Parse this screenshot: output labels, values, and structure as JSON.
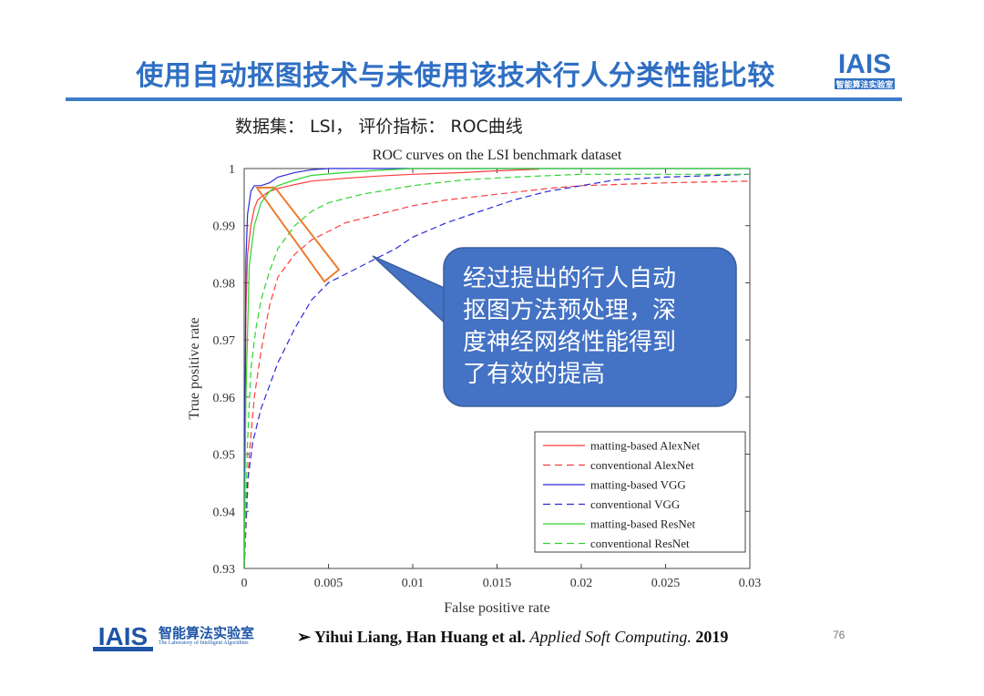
{
  "slide": {
    "title": "使用自动抠图技术与未使用该技术行人分类性能比较",
    "subtitle": "数据集： LSI， 评价指标： ROC曲线",
    "callout_text": "经过提出的行人自动抠图方法预处理，深度神经网络性能得到了有效的提高",
    "callout_lines": [
      "经过提出的行人自动",
      "抠图方法预处理，深",
      "度神经网络性能得到",
      "了有效的提高"
    ],
    "citation_bullet": "➢",
    "citation_authors": "Yihui Liang, Han Huang et al.",
    "citation_journal": "Applied Soft Computing.",
    "citation_year": "2019",
    "page_number": "76",
    "logo_text": "IAIS",
    "logo_sub": "智能算法实验室",
    "footer_lab_name": "智能算法实验室",
    "footer_lab_en": "The Laboratory of Intelligent Algorithms",
    "colors": {
      "title": "#2f6fc3",
      "rule": "#3e7cc8",
      "callout_fill": "#4472c4",
      "highlight": "#ed7d31",
      "red": "#ff3b3b",
      "blue": "#2b2bd9",
      "green": "#2fd32f"
    }
  },
  "chart_data": {
    "type": "line",
    "title": "ROC curves on the LSI benchmark dataset",
    "xlabel": "False positive rate",
    "ylabel": "True positive rate",
    "xlim": [
      0,
      0.03
    ],
    "ylim": [
      0.93,
      1
    ],
    "xticks": [
      0,
      0.005,
      0.01,
      0.015,
      0.02,
      0.025,
      0.03
    ],
    "xtick_labels": [
      "0",
      "0.005",
      "0.01",
      "0.015",
      "0.02",
      "0.025",
      "0.03"
    ],
    "yticks": [
      0.93,
      0.94,
      0.95,
      0.96,
      0.97,
      0.98,
      0.99,
      1
    ],
    "ytick_labels": [
      "0.93",
      "0.94",
      "0.95",
      "0.96",
      "0.97",
      "0.98",
      "0.99",
      "1"
    ],
    "legend_position": "bottom-right",
    "series": [
      {
        "name": "matting-based AlexNet",
        "color": "#ff3b3b",
        "style": "solid",
        "x": [
          0,
          0.0001,
          0.0002,
          0.0004,
          0.0006,
          0.0008,
          0.001,
          0.0015,
          0.002,
          0.003,
          0.004,
          0.006,
          0.008,
          0.01,
          0.013,
          0.015,
          0.0175
        ],
        "y": [
          0.93,
          0.975,
          0.985,
          0.99,
          0.993,
          0.9945,
          0.995,
          0.996,
          0.9965,
          0.9972,
          0.9978,
          0.9983,
          0.9987,
          0.999,
          0.9993,
          0.9996,
          0.9999
        ]
      },
      {
        "name": "conventional AlexNet",
        "color": "#ff3b3b",
        "style": "dashed",
        "x": [
          0,
          0.0003,
          0.0006,
          0.001,
          0.0015,
          0.002,
          0.003,
          0.004,
          0.005,
          0.006,
          0.008,
          0.01,
          0.012,
          0.015,
          0.018,
          0.02,
          0.025,
          0.03
        ],
        "y": [
          0.93,
          0.95,
          0.96,
          0.968,
          0.976,
          0.981,
          0.985,
          0.9875,
          0.989,
          0.9905,
          0.992,
          0.9935,
          0.9945,
          0.9955,
          0.9965,
          0.997,
          0.9975,
          0.9978
        ]
      },
      {
        "name": "matting-based VGG",
        "color": "#2b2bd9",
        "style": "solid",
        "x": [
          0,
          0.0001,
          0.0002,
          0.0004,
          0.0006,
          0.001,
          0.0015,
          0.002,
          0.003,
          0.004,
          0.005,
          0.006,
          0.008,
          0.01,
          0.015,
          0.02,
          0.03
        ],
        "y": [
          0.93,
          0.984,
          0.992,
          0.996,
          0.997,
          0.997,
          0.9975,
          0.9985,
          0.9993,
          0.9998,
          1,
          1,
          1,
          1,
          1,
          1,
          1
        ]
      },
      {
        "name": "conventional VGG",
        "color": "#2b2bd9",
        "style": "dashed",
        "x": [
          0,
          0.0002,
          0.0005,
          0.001,
          0.0015,
          0.002,
          0.003,
          0.004,
          0.005,
          0.006,
          0.007,
          0.008,
          0.009,
          0.01,
          0.012,
          0.014,
          0.016,
          0.018,
          0.02,
          0.022,
          0.025,
          0.03
        ],
        "y": [
          0.93,
          0.945,
          0.952,
          0.958,
          0.962,
          0.966,
          0.972,
          0.977,
          0.98,
          0.9815,
          0.983,
          0.9845,
          0.986,
          0.988,
          0.9905,
          0.9925,
          0.9945,
          0.996,
          0.997,
          0.998,
          0.9985,
          0.999
        ]
      },
      {
        "name": "matting-based ResNet",
        "color": "#2fd32f",
        "style": "solid",
        "x": [
          0,
          0.0001,
          0.0003,
          0.0006,
          0.001,
          0.0015,
          0.002,
          0.003,
          0.004,
          0.006,
          0.008,
          0.01,
          0.03
        ],
        "y": [
          0.93,
          0.96,
          0.983,
          0.99,
          0.994,
          0.996,
          0.997,
          0.998,
          0.9988,
          0.9993,
          0.9997,
          1,
          1
        ]
      },
      {
        "name": "conventional ResNet",
        "color": "#2fd32f",
        "style": "dashed",
        "x": [
          0,
          0.0002,
          0.0004,
          0.0007,
          0.001,
          0.0015,
          0.002,
          0.003,
          0.004,
          0.005,
          0.007,
          0.01,
          0.013,
          0.016,
          0.02,
          0.025,
          0.03
        ],
        "y": [
          0.93,
          0.952,
          0.965,
          0.972,
          0.977,
          0.982,
          0.986,
          0.99,
          0.9925,
          0.994,
          0.9955,
          0.997,
          0.998,
          0.9985,
          0.999,
          0.999,
          0.999
        ]
      }
    ]
  }
}
